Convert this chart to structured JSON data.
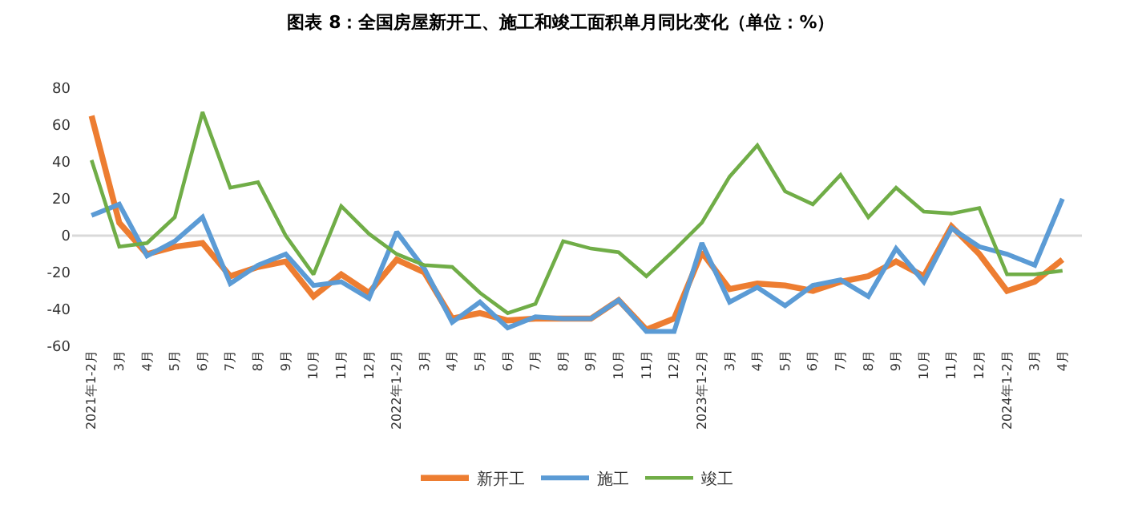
{
  "chart_data": {
    "type": "line",
    "title": "图表 8：全国房屋新开工、施工和竣工面积单月同比变化（单位：%）",
    "categories": [
      "2021年1-2月",
      "3月",
      "4月",
      "5月",
      "6月",
      "7月",
      "8月",
      "9月",
      "10月",
      "11月",
      "12月",
      "2022年1-2月",
      "3月",
      "4月",
      "5月",
      "6月",
      "7月",
      "8月",
      "9月",
      "10月",
      "11月",
      "12月",
      "2023年1-2月",
      "3月",
      "4月",
      "5月",
      "6月",
      "7月",
      "8月",
      "9月",
      "10月",
      "11月",
      "12月",
      "2024年1-2月",
      "3月",
      "4月"
    ],
    "series": [
      {
        "name": "新开工",
        "color": "#ed7d31",
        "values": [
          65,
          7,
          -10,
          -6,
          -4,
          -22,
          -17,
          -14,
          -33,
          -21,
          -31,
          -13,
          -20,
          -45,
          -42,
          -46,
          -45,
          -45,
          -45,
          -35,
          -51,
          -45,
          -9,
          -29,
          -26,
          -27,
          -30,
          -25,
          -22,
          -14,
          -22,
          5,
          -10,
          -30,
          -25,
          -13
        ]
      },
      {
        "name": "施工",
        "color": "#5b9bd5",
        "values": [
          11,
          17,
          -11,
          -3,
          10,
          -26,
          -16,
          -10,
          -27,
          -25,
          -34,
          2,
          -18,
          -47,
          -36,
          -50,
          -44,
          -45,
          -45,
          -35,
          -52,
          -52,
          -4,
          -36,
          -28,
          -38,
          -27,
          -24,
          -33,
          -7,
          -25,
          4,
          -6,
          -10,
          -16,
          20
        ]
      },
      {
        "name": "竣工",
        "color": "#70ad47",
        "values": [
          41,
          -6,
          -4,
          10,
          67,
          26,
          29,
          0,
          -21,
          16,
          1,
          -10,
          -16,
          -17,
          -31,
          -42,
          -37,
          -3,
          -7,
          -9,
          -22,
          -8,
          7,
          32,
          49,
          24,
          17,
          33,
          10,
          26,
          13,
          12,
          15,
          -21,
          -21,
          -19
        ]
      }
    ],
    "ylim": [
      -60,
      80
    ],
    "yticks": [
      -60,
      -40,
      -20,
      0,
      20,
      40,
      60,
      80
    ],
    "ref_lines": [
      {
        "axis": "y",
        "value": 0,
        "color": "#d9d9d9"
      }
    ],
    "grid": false,
    "legend": "bottom",
    "marker": "none",
    "line_style": "solid"
  }
}
